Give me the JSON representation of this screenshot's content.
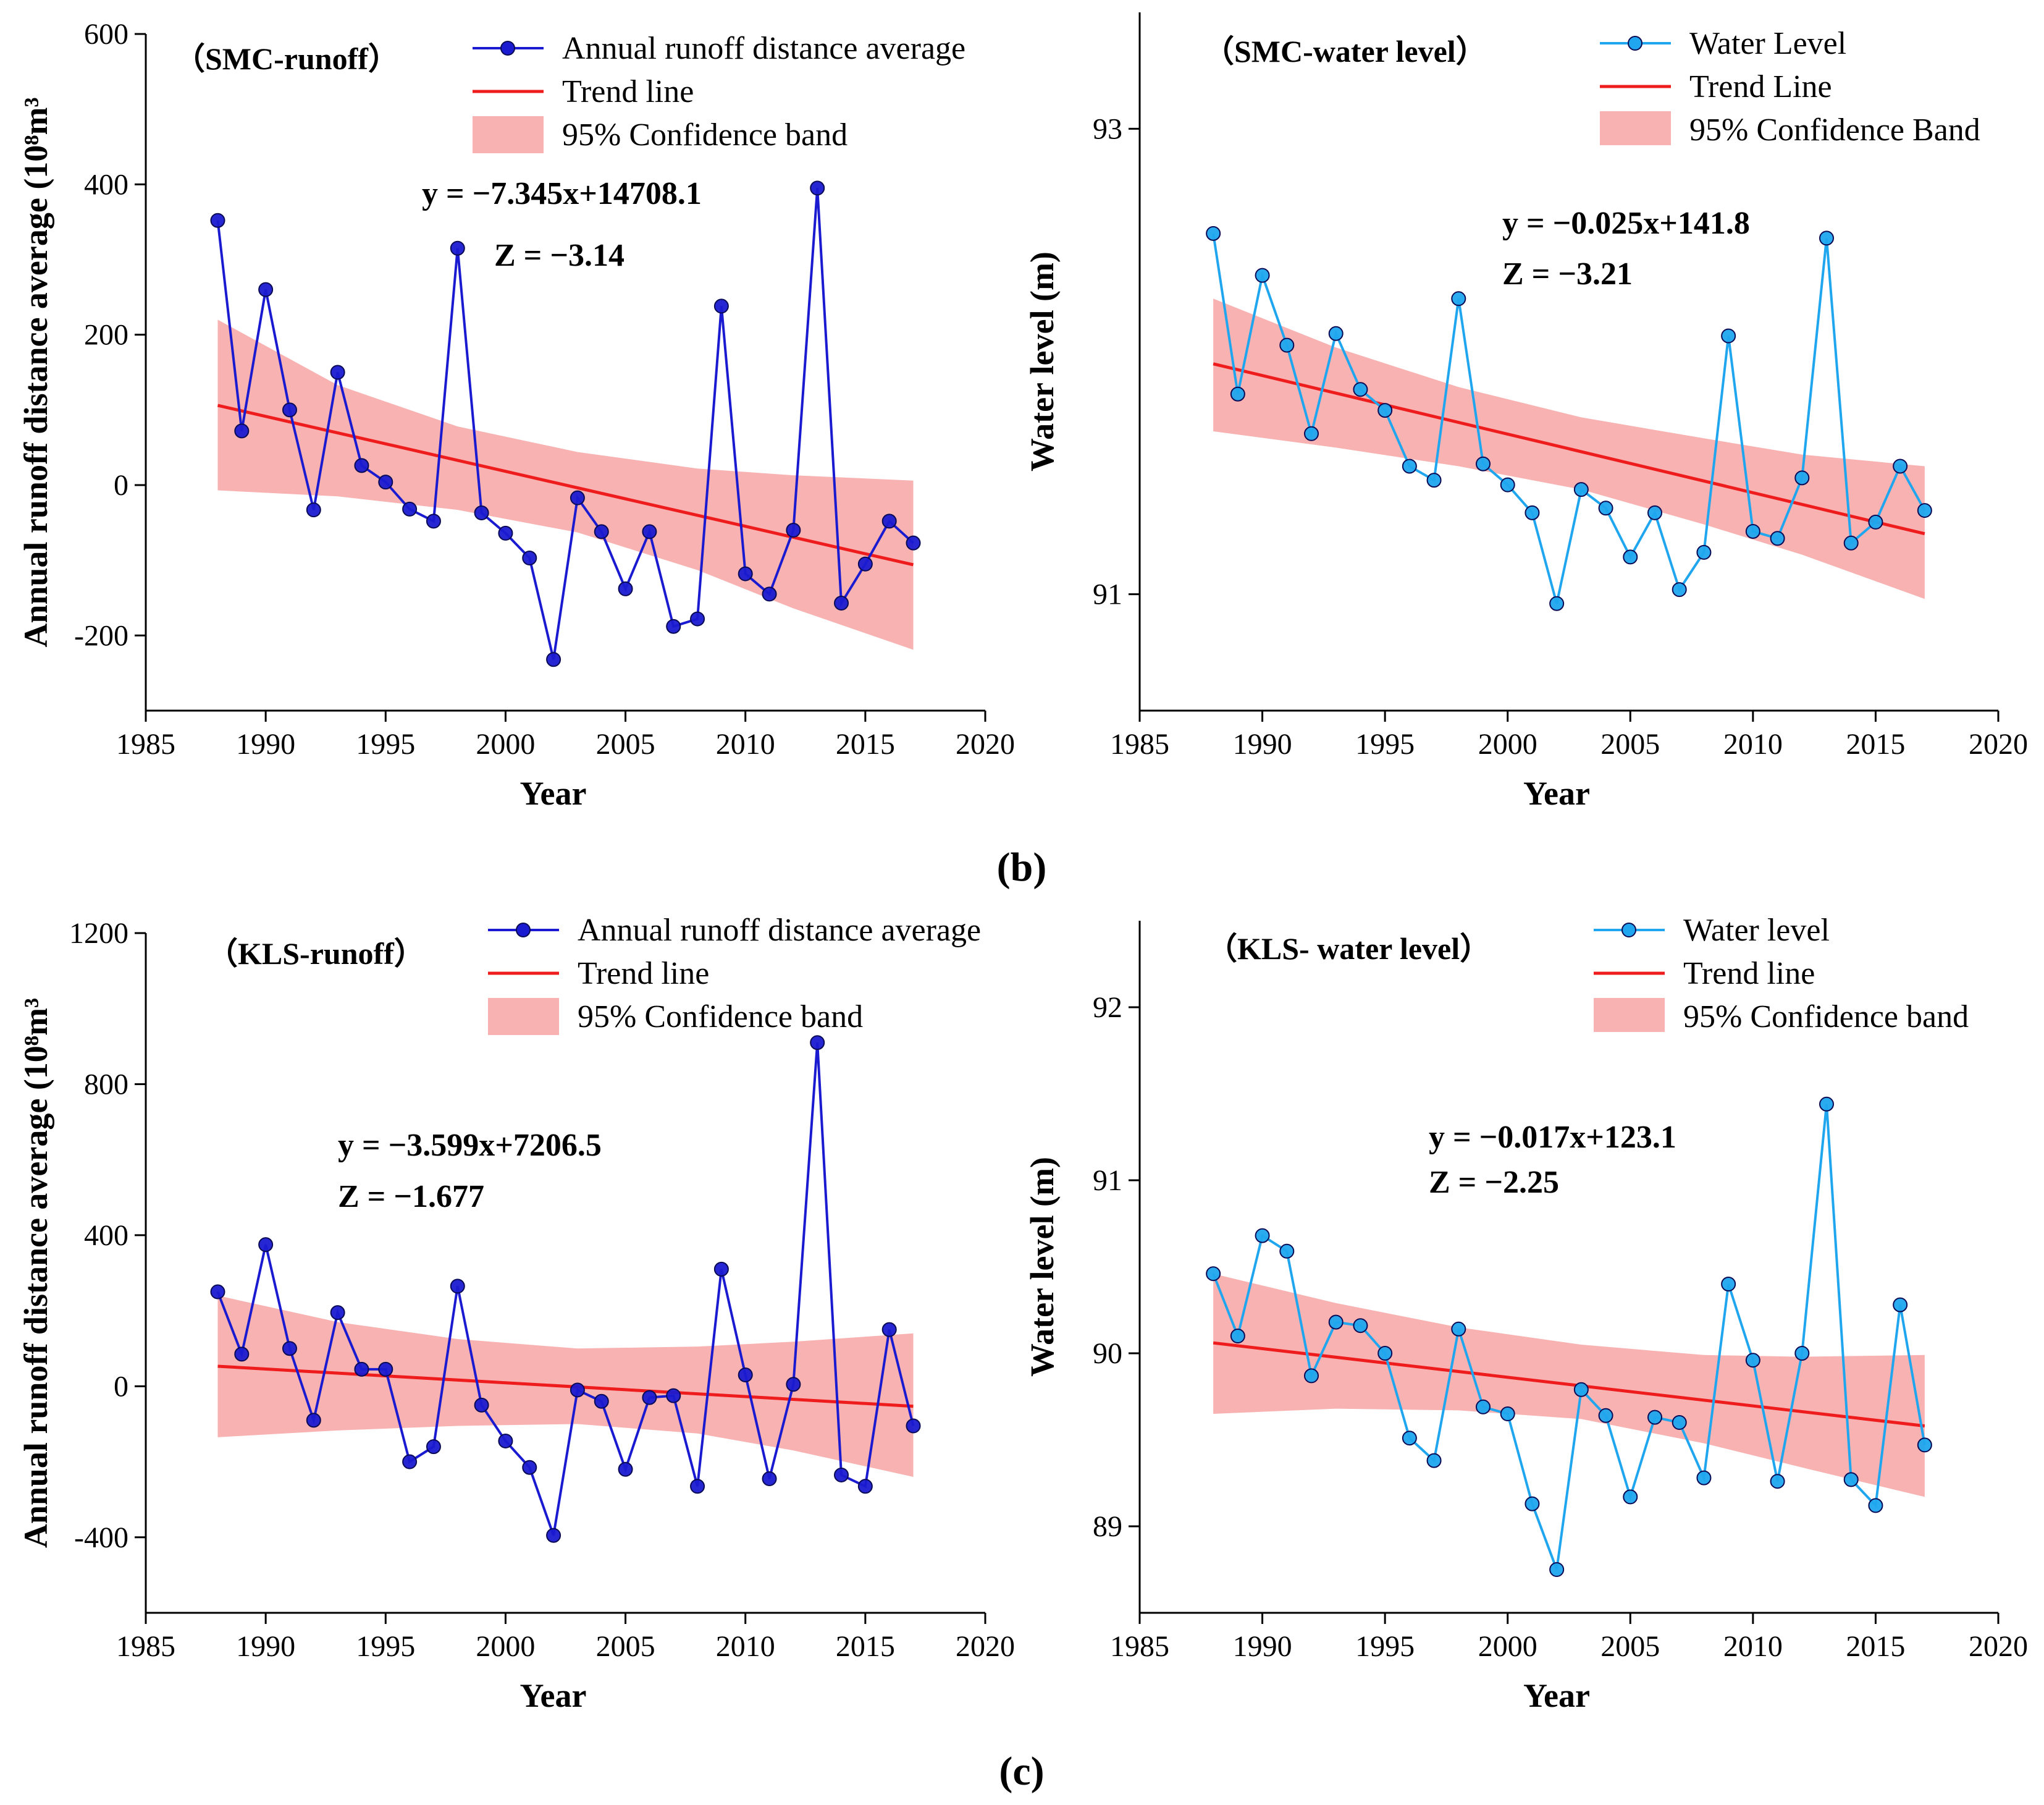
{
  "colors": {
    "runoff_series": "#1a1ad0",
    "water_series": "#1fa6ee",
    "trend": "#ee1c1c",
    "band": "#f7a5a5"
  },
  "subfigure_labels": [
    "(b)",
    "(c)"
  ],
  "chart_data": [
    {
      "type": "line",
      "title": "（SMC-runoff）",
      "xlabel": "Year",
      "ylabel": "Annual runoff distance average (10⁸m³",
      "xlim": [
        1985,
        2020
      ],
      "ylim": [
        -300,
        600
      ],
      "xticks": [
        1985,
        1990,
        1995,
        2000,
        2005,
        2010,
        2015,
        2020
      ],
      "yticks": [
        -200,
        0,
        200,
        400,
        600
      ],
      "legend": [
        "Annual runoff distance average",
        "Trend line",
        "95% Confidence band"
      ],
      "legend_position": "top-right",
      "series_color": "runoff_series",
      "annotations": [
        "y = −7.345x+14708.1",
        "Z = −3.14"
      ],
      "x": [
        1988,
        1989,
        1990,
        1991,
        1992,
        1993,
        1994,
        1995,
        1996,
        1997,
        1998,
        1999,
        2000,
        2001,
        2002,
        2003,
        2004,
        2005,
        2006,
        2007,
        2008,
        2009,
        2010,
        2011,
        2012,
        2013,
        2014,
        2015,
        2016,
        2017
      ],
      "values": [
        352,
        72,
        260,
        100,
        -33,
        150,
        26,
        4,
        -32,
        -48,
        315,
        -37,
        -64,
        -97,
        -232,
        -17,
        -62,
        -138,
        -62,
        -188,
        -178,
        238,
        -118,
        -145,
        -60,
        395,
        -157,
        -105,
        -48,
        -77
      ],
      "trend": {
        "x": [
          1988,
          2017
        ],
        "y": [
          106,
          -106
        ]
      },
      "band": {
        "x": [
          1988,
          1993,
          1998,
          2003,
          2008,
          2012,
          2017
        ],
        "upper": [
          220,
          133,
          78,
          44,
          22,
          13,
          6
        ],
        "lower": [
          -7,
          -15,
          -33,
          -63,
          -113,
          -164,
          -219
        ]
      }
    },
    {
      "type": "line",
      "title": "（SMC-water level）",
      "xlabel": "Year",
      "ylabel": "Water level (m)",
      "xlim": [
        1985,
        2020
      ],
      "ylim": [
        90.5,
        93.5
      ],
      "xticks": [
        1985,
        1990,
        1995,
        2000,
        2005,
        2010,
        2015,
        2020
      ],
      "yticks": [
        91,
        93
      ],
      "legend": [
        "Water Level",
        "Trend Line",
        "95% Confidence Band"
      ],
      "legend_position": "top-right",
      "series_color": "water_series",
      "annotations": [
        "y = −0.025x+141.8",
        "Z = −3.21"
      ],
      "x": [
        1988,
        1989,
        1990,
        1991,
        1992,
        1993,
        1994,
        1995,
        1996,
        1997,
        1998,
        1999,
        2000,
        2001,
        2002,
        2003,
        2004,
        2005,
        2006,
        2007,
        2008,
        2009,
        2010,
        2011,
        2012,
        2013,
        2014,
        2015,
        2016,
        2017
      ],
      "values": [
        92.55,
        91.86,
        92.37,
        92.07,
        91.69,
        92.12,
        91.88,
        91.79,
        91.55,
        91.49,
        92.27,
        91.56,
        91.47,
        91.35,
        90.96,
        91.45,
        91.37,
        91.16,
        91.35,
        91.02,
        91.18,
        92.11,
        91.27,
        91.24,
        91.5,
        92.53,
        91.22,
        91.31,
        91.55,
        91.36
      ],
      "trend": {
        "x": [
          1988,
          2017
        ],
        "y": [
          91.99,
          91.26
        ]
      },
      "band": {
        "x": [
          1988,
          1993,
          1998,
          2003,
          2008,
          2012,
          2017
        ],
        "upper": [
          92.27,
          92.06,
          91.89,
          91.76,
          91.67,
          91.6,
          91.55
        ],
        "lower": [
          91.7,
          91.63,
          91.55,
          91.45,
          91.3,
          91.17,
          90.98
        ]
      }
    },
    {
      "type": "line",
      "title": "（KLS-runoff）",
      "xlabel": "Year",
      "ylabel": "Annual runoff distance average (10⁸m³",
      "xlim": [
        1985,
        2020
      ],
      "ylim": [
        -600,
        1200
      ],
      "xticks": [
        1985,
        1990,
        1995,
        2000,
        2005,
        2010,
        2015,
        2020
      ],
      "yticks": [
        -400,
        0,
        400,
        800,
        1200
      ],
      "legend": [
        "Annual runoff distance average",
        "Trend line",
        "95% Confidence band"
      ],
      "legend_position": "top-right",
      "series_color": "runoff_series",
      "annotations": [
        "y = −3.599x+7206.5",
        "Z = −1.677"
      ],
      "x": [
        1988,
        1989,
        1990,
        1991,
        1992,
        1993,
        1994,
        1995,
        1996,
        1997,
        1998,
        1999,
        2000,
        2001,
        2002,
        2003,
        2004,
        2005,
        2006,
        2007,
        2008,
        2009,
        2010,
        2011,
        2012,
        2013,
        2014,
        2015,
        2016,
        2017
      ],
      "values": [
        250,
        85,
        375,
        100,
        -90,
        195,
        45,
        45,
        -200,
        -160,
        265,
        -50,
        -145,
        -215,
        -395,
        -10,
        -40,
        -220,
        -30,
        -25,
        -265,
        310,
        30,
        -245,
        5,
        910,
        -235,
        -265,
        150,
        -105
      ],
      "trend": {
        "x": [
          1988,
          2017
        ],
        "y": [
          53,
          -53
        ]
      },
      "band": {
        "x": [
          1988,
          1993,
          1998,
          2003,
          2008,
          2012,
          2017
        ],
        "upper": [
          240,
          170,
          125,
          100,
          105,
          118,
          140
        ],
        "lower": [
          -135,
          -117,
          -105,
          -100,
          -125,
          -170,
          -240
        ]
      }
    },
    {
      "type": "line",
      "title": "（KLS- water level）",
      "xlabel": "Year",
      "ylabel": "Water level (m)",
      "xlim": [
        1985,
        2020
      ],
      "ylim": [
        88.5,
        92.5
      ],
      "xticks": [
        1985,
        1990,
        1995,
        2000,
        2005,
        2010,
        2015,
        2020
      ],
      "yticks": [
        89,
        90,
        91,
        92
      ],
      "legend": [
        "Water level",
        "Trend line",
        "95% Confidence band"
      ],
      "legend_position": "top-right",
      "series_color": "water_series",
      "annotations": [
        "y = −0.017x+123.1",
        "Z = −2.25"
      ],
      "x": [
        1988,
        1989,
        1990,
        1991,
        1992,
        1993,
        1994,
        1995,
        1996,
        1997,
        1998,
        1999,
        2000,
        2001,
        2002,
        2003,
        2004,
        2005,
        2006,
        2007,
        2008,
        2009,
        2010,
        2011,
        2012,
        2013,
        2014,
        2015,
        2016,
        2017
      ],
      "values": [
        90.46,
        90.1,
        90.68,
        90.59,
        89.87,
        90.18,
        90.16,
        90.0,
        89.51,
        89.38,
        90.14,
        89.69,
        89.65,
        89.13,
        88.75,
        89.79,
        89.64,
        89.17,
        89.63,
        89.6,
        89.28,
        90.4,
        89.96,
        89.26,
        90.0,
        91.44,
        89.27,
        89.12,
        90.28,
        89.47
      ],
      "trend": {
        "x": [
          1988,
          2017
        ],
        "y": [
          90.06,
          89.58
        ]
      },
      "band": {
        "x": [
          1988,
          1993,
          1998,
          2003,
          2008,
          2012,
          2017
        ],
        "upper": [
          90.46,
          90.29,
          90.15,
          90.05,
          89.99,
          89.98,
          89.99
        ],
        "lower": [
          89.65,
          89.68,
          89.67,
          89.62,
          89.48,
          89.34,
          89.17
        ]
      }
    }
  ]
}
